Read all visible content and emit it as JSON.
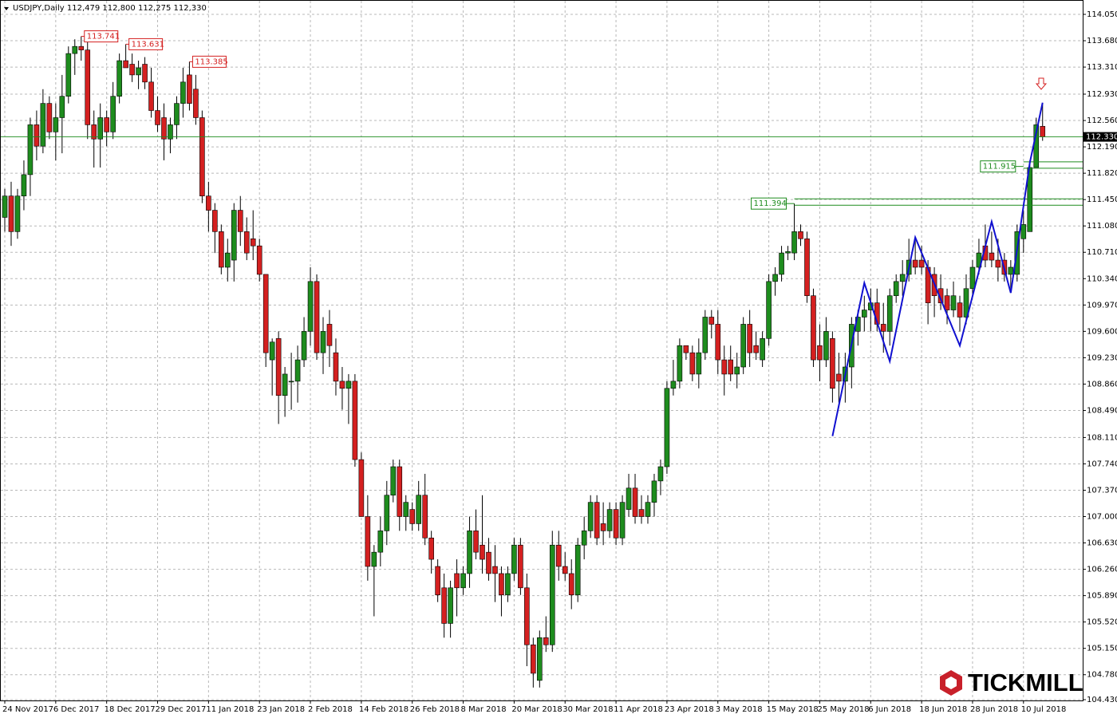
{
  "chart_data": {
    "type": "candlestick",
    "title": "USDJPY,Daily  112,479 112,800 112,275 112,330",
    "brand": "TICKMILL",
    "up_color": "#1e8c1e",
    "down_color": "#d42020",
    "grid": true,
    "ylim": [
      104.43,
      114.05
    ],
    "yticks": [
      {
        "value": 114.05,
        "label": "114.050"
      },
      {
        "value": 113.68,
        "label": "113.680"
      },
      {
        "value": 113.31,
        "label": "113.310"
      },
      {
        "value": 112.93,
        "label": "112.930"
      },
      {
        "value": 112.56,
        "label": "112.560"
      },
      {
        "value": 112.19,
        "label": "112.190"
      },
      {
        "value": 111.82,
        "label": "111.820"
      },
      {
        "value": 111.45,
        "label": "111.450"
      },
      {
        "value": 111.08,
        "label": "111.080"
      },
      {
        "value": 110.71,
        "label": "110.710"
      },
      {
        "value": 110.34,
        "label": "110.340"
      },
      {
        "value": 109.97,
        "label": "109.970"
      },
      {
        "value": 109.6,
        "label": "109.600"
      },
      {
        "value": 109.23,
        "label": "109.230"
      },
      {
        "value": 108.86,
        "label": "108.860"
      },
      {
        "value": 108.49,
        "label": "108.490"
      },
      {
        "value": 108.11,
        "label": "108.110"
      },
      {
        "value": 107.74,
        "label": "107.740"
      },
      {
        "value": 107.37,
        "label": "107.370"
      },
      {
        "value": 107.0,
        "label": "107.000"
      },
      {
        "value": 106.63,
        "label": "106.630"
      },
      {
        "value": 106.26,
        "label": "106.260"
      },
      {
        "value": 105.89,
        "label": "105.890"
      },
      {
        "value": 105.52,
        "label": "105.520"
      },
      {
        "value": 105.15,
        "label": "105.150"
      },
      {
        "value": 104.78,
        "label": "104.780"
      },
      {
        "value": 104.43,
        "label": "104.430"
      }
    ],
    "categories": [
      "24 Nov 2017",
      null,
      null,
      null,
      null,
      null,
      null,
      null,
      "6 Dec 2017",
      null,
      null,
      null,
      null,
      null,
      null,
      null,
      "18 Dec 2017",
      null,
      null,
      null,
      null,
      null,
      null,
      null,
      "29 Dec 2017",
      null,
      null,
      null,
      null,
      null,
      null,
      null,
      "11 Jan 2018",
      null,
      null,
      null,
      null,
      null,
      null,
      null,
      "23 Jan 2018",
      null,
      null,
      null,
      null,
      null,
      null,
      null,
      "2 Feb 2018",
      null,
      null,
      null,
      null,
      null,
      null,
      null,
      "14 Feb 2018",
      null,
      null,
      null,
      null,
      null,
      null,
      null,
      "26 Feb 2018",
      null,
      null,
      null,
      null,
      null,
      null,
      null,
      "8 Mar 2018",
      null,
      null,
      null,
      null,
      null,
      null,
      null,
      "20 Mar 2018",
      null,
      null,
      null,
      null,
      null,
      null,
      null,
      "30 Mar 2018",
      null,
      null,
      null,
      null,
      null,
      null,
      null,
      "11 Apr 2018",
      null,
      null,
      null,
      null,
      null,
      null,
      null,
      "23 Apr 2018",
      null,
      null,
      null,
      null,
      null,
      null,
      null,
      "3 May 2018",
      null,
      null,
      null,
      null,
      null,
      null,
      null,
      "15 May 2018",
      null,
      null,
      null,
      null,
      null,
      null,
      null,
      "25 May 2018",
      null,
      null,
      null,
      null,
      null,
      null,
      null,
      "6 Jun 2018",
      null,
      null,
      null,
      null,
      null,
      null,
      null,
      "18 Jun 2018",
      null,
      null,
      null,
      null,
      null,
      null,
      null,
      "28 Jun 2018",
      null,
      null,
      null,
      null,
      null,
      null,
      null,
      "10 Jul 2018",
      null,
      null,
      null
    ],
    "open": [
      111.2,
      111.5,
      111.0,
      111.5,
      111.8,
      112.5,
      112.2,
      112.8,
      112.4,
      112.6,
      112.9,
      113.5,
      113.6,
      113.55,
      112.5,
      112.3,
      112.6,
      112.4,
      112.9,
      113.4,
      113.35,
      113.2,
      113.35,
      113.1,
      112.7,
      112.6,
      112.3,
      112.5,
      112.8,
      113.2,
      113.0,
      112.6,
      111.5,
      111.3,
      111.0,
      110.5,
      110.6,
      111.3,
      111.0,
      110.9,
      110.8,
      110.4,
      109.2,
      109.5,
      108.7,
      108.9,
      108.9,
      109.2,
      109.6,
      110.3,
      109.3,
      109.7,
      109.3,
      108.9,
      108.8,
      108.9,
      107.8,
      107.0,
      106.3,
      106.5,
      106.8,
      107.3,
      107.7,
      107.0,
      107.1,
      106.9,
      107.3,
      106.7,
      106.3,
      106.0,
      105.5,
      106.2,
      106.0,
      106.2,
      106.8,
      106.6,
      106.5,
      106.3,
      106.2,
      105.9,
      106.2,
      106.6,
      106.0,
      105.2,
      104.7,
      105.3,
      105.2,
      106.6,
      106.3,
      106.2,
      105.9,
      106.6,
      106.8,
      107.2,
      106.9,
      106.8,
      107.1,
      106.7,
      107.1,
      107.4,
      107.1,
      107.0,
      107.2,
      107.5,
      107.7,
      108.8,
      108.9,
      109.4,
      109.3,
      109.0,
      109.3,
      109.8,
      109.7,
      109.2,
      109.2,
      109.0,
      109.1,
      109.7,
      109.4,
      109.2,
      109.5,
      110.3,
      110.4,
      110.7,
      110.7,
      111.0,
      110.9,
      110.1,
      109.4,
      109.2,
      109.5,
      109.0,
      108.9,
      109.1,
      109.6,
      109.8,
      109.9,
      110.0,
      109.7,
      109.6,
      110.1,
      110.3,
      110.4,
      110.6,
      110.6,
      110.5,
      110.4,
      110.2,
      110.1,
      109.9,
      110.0,
      109.8,
      110.2,
      110.5,
      110.8,
      110.7,
      110.6,
      110.6,
      110.4,
      110.4,
      110.9,
      111.0,
      111.9,
      112.479
    ],
    "high": [
      111.6,
      111.7,
      111.6,
      112.0,
      112.6,
      112.7,
      113.0,
      112.9,
      112.8,
      113.2,
      113.6,
      113.7,
      113.741,
      113.7,
      112.7,
      112.8,
      112.7,
      113.1,
      113.5,
      113.631,
      113.5,
      113.4,
      113.45,
      113.3,
      112.9,
      112.8,
      112.6,
      112.9,
      113.3,
      113.385,
      113.2,
      112.7,
      111.7,
      111.4,
      111.1,
      110.9,
      111.4,
      111.5,
      111.2,
      111.3,
      110.9,
      110.4,
      109.5,
      109.6,
      109.1,
      109.3,
      109.4,
      109.8,
      110.5,
      110.4,
      109.8,
      109.9,
      109.5,
      109.1,
      109.0,
      109.0,
      107.9,
      107.3,
      106.6,
      107.0,
      107.5,
      107.8,
      107.8,
      107.3,
      107.2,
      107.5,
      107.6,
      106.8,
      106.4,
      106.2,
      106.1,
      106.4,
      106.3,
      107.0,
      107.1,
      107.3,
      106.7,
      106.6,
      106.3,
      106.3,
      106.7,
      106.7,
      106.2,
      105.3,
      105.4,
      105.6,
      106.8,
      106.8,
      106.5,
      106.4,
      106.7,
      107.0,
      107.3,
      107.3,
      107.2,
      107.2,
      107.2,
      107.3,
      107.6,
      107.6,
      107.3,
      107.3,
      107.6,
      107.8,
      108.9,
      109.2,
      109.5,
      109.4,
      109.4,
      109.5,
      109.9,
      109.9,
      109.9,
      109.4,
      109.4,
      109.3,
      109.8,
      109.9,
      109.6,
      109.6,
      110.4,
      110.5,
      110.8,
      110.8,
      111.394,
      111.1,
      111.0,
      110.2,
      109.7,
      109.8,
      109.6,
      109.3,
      109.3,
      109.8,
      109.9,
      110.1,
      110.2,
      110.2,
      110.0,
      110.2,
      110.4,
      110.6,
      110.9,
      110.9,
      110.8,
      110.6,
      110.5,
      110.4,
      110.2,
      110.3,
      110.1,
      110.4,
      110.6,
      110.9,
      111.1,
      111.0,
      110.9,
      110.7,
      110.6,
      111.1,
      111.3,
      112.0,
      112.6,
      112.8
    ],
    "low": [
      111.0,
      110.8,
      110.9,
      111.3,
      111.5,
      112.0,
      112.1,
      112.3,
      112.0,
      112.1,
      112.8,
      113.2,
      113.4,
      112.3,
      111.9,
      111.9,
      112.2,
      112.3,
      112.8,
      113.3,
      113.1,
      113.0,
      113.0,
      112.6,
      112.4,
      112.0,
      112.1,
      112.3,
      112.6,
      112.7,
      112.5,
      111.4,
      111.0,
      110.7,
      110.4,
      110.3,
      110.3,
      110.8,
      110.6,
      110.6,
      110.3,
      109.1,
      108.7,
      108.3,
      108.4,
      108.5,
      108.6,
      109.1,
      109.4,
      109.2,
      109.0,
      109.1,
      108.7,
      108.5,
      108.3,
      107.7,
      107.0,
      106.1,
      105.6,
      106.3,
      106.6,
      107.2,
      106.8,
      106.8,
      106.8,
      106.8,
      106.6,
      106.2,
      105.8,
      105.3,
      105.3,
      105.6,
      105.9,
      106.0,
      106.4,
      106.2,
      106.1,
      105.8,
      105.6,
      105.8,
      106.1,
      105.9,
      104.9,
      104.6,
      104.6,
      105.1,
      105.1,
      106.1,
      106.1,
      105.7,
      105.8,
      106.4,
      106.7,
      106.6,
      106.6,
      106.7,
      106.6,
      106.6,
      107.0,
      106.9,
      106.9,
      106.9,
      107.0,
      107.3,
      107.6,
      108.7,
      108.8,
      109.2,
      108.9,
      108.8,
      109.2,
      109.5,
      109.0,
      108.7,
      108.9,
      108.8,
      109.0,
      109.1,
      109.2,
      109.1,
      109.4,
      110.1,
      110.3,
      110.6,
      110.6,
      110.8,
      110.0,
      109.1,
      108.9,
      109.1,
      108.6,
      108.6,
      108.6,
      108.8,
      109.4,
      109.6,
      109.6,
      109.6,
      109.3,
      109.4,
      110.0,
      110.1,
      110.3,
      110.4,
      110.4,
      109.7,
      109.8,
      109.9,
      109.7,
      109.8,
      109.6,
      109.7,
      110.1,
      110.4,
      110.5,
      110.5,
      110.3,
      110.3,
      110.2,
      110.3,
      110.7,
      111.0,
      111.9,
      112.275
    ],
    "close": [
      111.5,
      111.0,
      111.5,
      111.8,
      112.5,
      112.2,
      112.8,
      112.4,
      112.6,
      112.9,
      113.5,
      113.6,
      113.55,
      112.5,
      112.3,
      112.6,
      112.4,
      112.9,
      113.4,
      113.3,
      113.2,
      113.3,
      113.1,
      112.7,
      112.5,
      112.3,
      112.5,
      112.8,
      113.1,
      112.8,
      112.6,
      111.5,
      111.3,
      111.0,
      110.5,
      110.7,
      111.3,
      111.0,
      110.7,
      110.8,
      110.4,
      109.3,
      109.45,
      108.7,
      109.0,
      108.9,
      109.2,
      109.6,
      110.3,
      109.3,
      109.6,
      109.4,
      108.9,
      108.8,
      108.9,
      107.8,
      107.0,
      106.3,
      106.5,
      106.8,
      107.3,
      107.7,
      107.0,
      107.2,
      106.9,
      107.3,
      106.7,
      106.4,
      105.9,
      105.5,
      106.0,
      106.0,
      106.2,
      106.8,
      106.5,
      106.4,
      106.2,
      106.2,
      105.9,
      106.2,
      106.6,
      106.0,
      105.2,
      104.8,
      105.3,
      105.2,
      106.6,
      106.3,
      106.2,
      105.9,
      106.6,
      106.8,
      107.2,
      106.7,
      106.8,
      107.1,
      106.7,
      107.2,
      107.4,
      107.0,
      107.0,
      107.2,
      107.5,
      107.7,
      108.8,
      108.9,
      109.4,
      109.3,
      109.0,
      109.3,
      109.8,
      109.7,
      109.2,
      109.0,
      109.0,
      109.1,
      109.7,
      109.3,
      109.3,
      109.5,
      110.3,
      110.4,
      110.7,
      110.72,
      111.0,
      110.9,
      110.1,
      109.2,
      109.2,
      109.6,
      108.8,
      108.9,
      109.1,
      109.7,
      109.8,
      109.9,
      110.0,
      109.7,
      109.6,
      110.1,
      110.3,
      110.4,
      110.6,
      110.5,
      110.5,
      110.0,
      110.1,
      110.0,
      109.9,
      110.1,
      109.8,
      110.2,
      110.5,
      110.7,
      110.6,
      110.6,
      110.5,
      110.4,
      110.5,
      111.0,
      111.1,
      111.9,
      112.5,
      112.33
    ],
    "price_line": {
      "value": 112.33,
      "label": "112.330",
      "color": "#1e8c1e"
    },
    "high_labels": [
      {
        "value": 113.741,
        "label": "113.741"
      },
      {
        "value": 113.631,
        "label": "113.631"
      },
      {
        "value": 113.385,
        "label": "113.385"
      }
    ],
    "zones": [
      {
        "value": 111.394,
        "label": "111.394",
        "top": 111.46,
        "bottom": 111.37
      },
      {
        "value": 111.915,
        "label": "111.915",
        "top": 111.98,
        "bottom": 111.89
      }
    ],
    "zigzag": {
      "color": "#1010d0",
      "x": [
        130,
        135,
        139,
        143,
        150,
        155,
        158,
        161,
        163
      ],
      "y": [
        108.13,
        110.28,
        109.18,
        110.92,
        109.4,
        111.14,
        110.14,
        111.97,
        112.81
      ]
    }
  }
}
